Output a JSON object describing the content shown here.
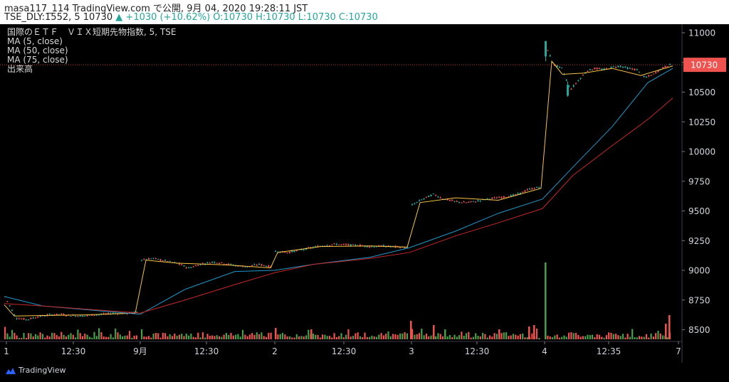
{
  "header": {
    "line1": "masa117_114 TradingView.com で公開, 9月 04, 2020 19:28:11 JST",
    "symbol": "TSE_DLY:1552, 5 10730",
    "change": "+1030 (+10.62%)",
    "ohlc": "O:10730 H:10730 L:10730 C:10730"
  },
  "legend": {
    "title": "国際のＥＴＦ　ＶＩＸ短期先物指数, 5, TSE",
    "ma5": "MA (5, close)",
    "ma50": "MA (50, close)",
    "ma75": "MA (75, close)",
    "volume": "出来高"
  },
  "branding": {
    "name": "TradingView"
  },
  "colors": {
    "up": "#ef5350",
    "down": "#26a69a",
    "ma5": "#f6c343",
    "ma50": "#2196c9",
    "ma75": "#c62828",
    "axis_text": "#d1d4dc",
    "price_label_bg": "#ef5350"
  },
  "chart_data": {
    "type": "candlestick",
    "ylabel": "",
    "ylim": [
      8400,
      11080
    ],
    "y_ticks": [
      8500,
      8750,
      9000,
      9250,
      9500,
      9750,
      10000,
      10250,
      10500,
      10750,
      11000
    ],
    "x_tick_labels": [
      "1",
      "12:30",
      "9月",
      "12:30",
      "2",
      "12:30",
      "3",
      "12:30",
      "4",
      "12:35",
      "7"
    ],
    "last_price": 10730,
    "sessions": [
      {
        "label": "1",
        "open": 8780,
        "close": 8640,
        "low": 8580,
        "high": 8800
      },
      {
        "label": "9月",
        "open": 9090,
        "close": 9030,
        "low": 9020,
        "high": 9110
      },
      {
        "label": "2",
        "open": 9160,
        "close": 9200,
        "low": 9130,
        "high": 9230
      },
      {
        "label": "3",
        "open": 9550,
        "close": 9690,
        "low": 9540,
        "high": 9700
      },
      {
        "label": "4",
        "open": 10900,
        "close": 10730,
        "low": 10470,
        "high": 10930
      }
    ],
    "ma5_key_points": [
      8710,
      8620,
      9080,
      9020,
      9140,
      9200,
      9560,
      9690,
      10750,
      10710,
      10720
    ],
    "ma50_key_points": [
      8780,
      8620,
      8700,
      9030,
      9110,
      9190,
      9330,
      9600,
      10100,
      10650
    ],
    "ma75_key_points": [
      8720,
      8640,
      8700,
      8980,
      9090,
      9150,
      9290,
      9520,
      9950,
      10450
    ],
    "volume_peak_session": "4"
  }
}
